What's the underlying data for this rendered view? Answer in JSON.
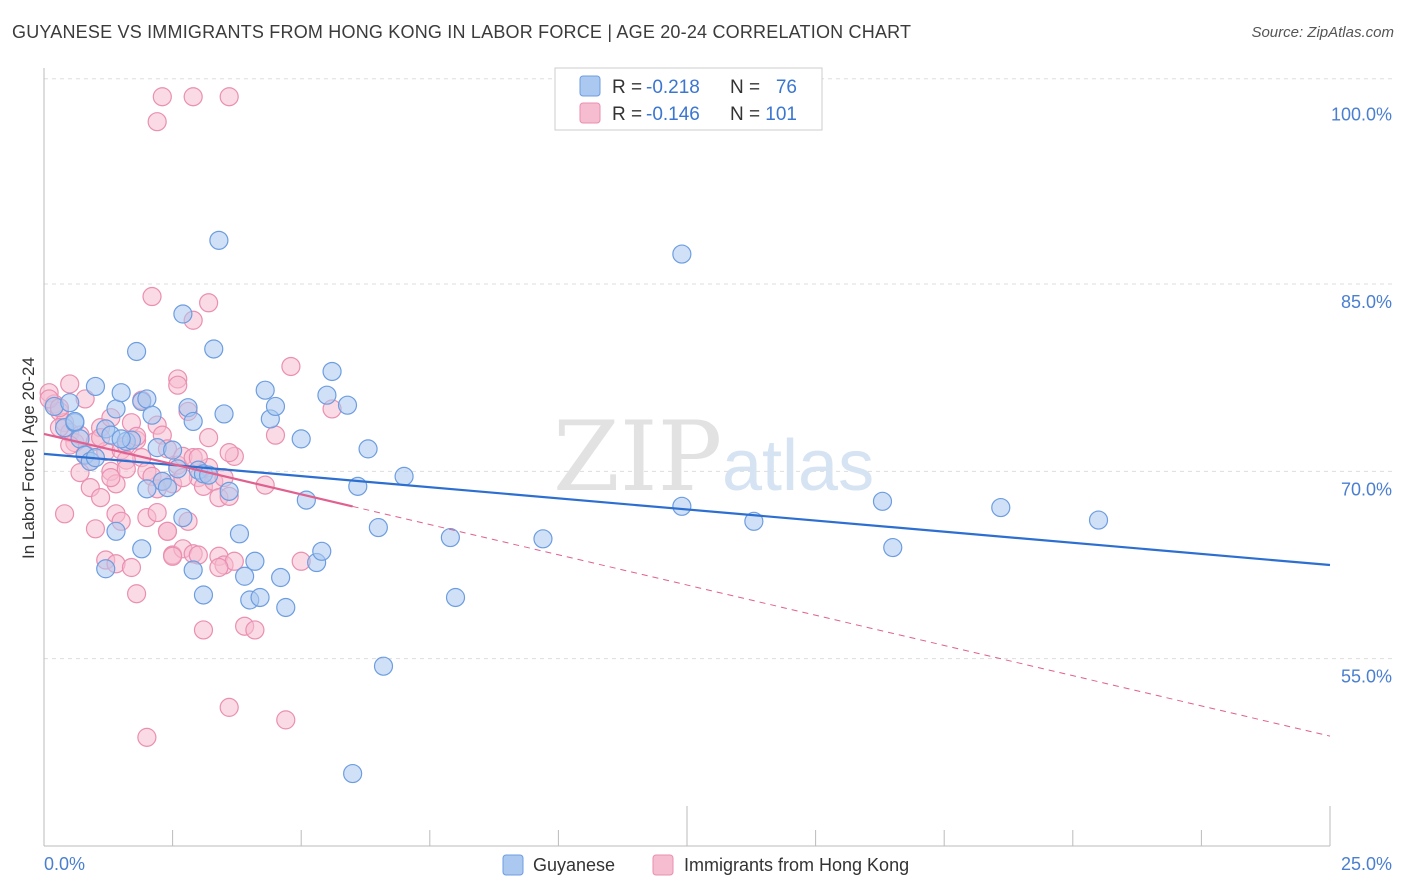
{
  "title": "GUYANESE VS IMMIGRANTS FROM HONG KONG IN LABOR FORCE | AGE 20-24 CORRELATION CHART",
  "source": "Source: ZipAtlas.com",
  "watermark": {
    "zip": "ZIP",
    "atlas": "atlas"
  },
  "colors": {
    "blue_fill": "#aac8f0",
    "blue_stroke": "#6d9de0",
    "blue_line": "#2d6fd0",
    "pink_fill": "#f6bcd0",
    "pink_stroke": "#ea8fb0",
    "pink_line": "#e0608f",
    "tick_text": "#4a7fd0",
    "grid": "#dddddd"
  },
  "legend": {
    "r_label": "R =",
    "n_label": "N =",
    "rows": [
      {
        "series": "Guyanese",
        "r": "-0.218",
        "n": "76"
      },
      {
        "series": "Immigrants from Hong Kong",
        "r": "-0.146",
        "n": "101"
      }
    ]
  },
  "chart_data": {
    "type": "scatter",
    "title": "GUYANESE VS IMMIGRANTS FROM HONG KONG IN LABOR FORCE | AGE 20-24 CORRELATION CHART",
    "ylabel": "In Labor Force | Age 20-24",
    "xlabel": "",
    "xlim": [
      0,
      25
    ],
    "ylim": [
      40,
      101.5
    ],
    "x_tick_labels": [
      "0.0%",
      "25.0%"
    ],
    "y_ticks": [
      55,
      70,
      85,
      100
    ],
    "y_tick_labels": [
      "55.0%",
      "70.0%",
      "85.0%",
      "100.0%"
    ],
    "grid": "horizontal dashed",
    "legend_position": "top-center",
    "series": [
      {
        "name": "Guyanese",
        "trend": {
          "x": [
            0,
            25
          ],
          "y": [
            71.4,
            62.5
          ],
          "solid_until": 25
        },
        "points": [
          [
            0.2,
            75.2
          ],
          [
            0.4,
            73.5
          ],
          [
            0.5,
            75.5
          ],
          [
            0.6,
            73.9
          ],
          [
            0.7,
            72.6
          ],
          [
            0.8,
            71.3
          ],
          [
            0.9,
            70.8
          ],
          [
            1.0,
            71.1
          ],
          [
            1.2,
            73.4
          ],
          [
            1.3,
            72.9
          ],
          [
            1.4,
            75.0
          ],
          [
            1.5,
            76.3
          ],
          [
            1.6,
            72.4
          ],
          [
            1.7,
            72.5
          ],
          [
            1.8,
            79.6
          ],
          [
            1.9,
            75.6
          ],
          [
            2.0,
            75.8
          ],
          [
            2.1,
            74.5
          ],
          [
            2.2,
            71.9
          ],
          [
            2.3,
            69.2
          ],
          [
            2.4,
            68.7
          ],
          [
            2.5,
            71.7
          ],
          [
            2.6,
            70.2
          ],
          [
            2.7,
            82.6
          ],
          [
            2.8,
            75.1
          ],
          [
            2.9,
            74.0
          ],
          [
            3.0,
            70.1
          ],
          [
            3.1,
            69.8
          ],
          [
            3.2,
            69.7
          ],
          [
            3.3,
            79.8
          ],
          [
            3.4,
            88.5
          ],
          [
            3.5,
            74.6
          ],
          [
            3.6,
            68.4
          ],
          [
            1.4,
            65.2
          ],
          [
            1.2,
            62.2
          ],
          [
            1.9,
            63.8
          ],
          [
            2.7,
            66.3
          ],
          [
            2.9,
            62.1
          ],
          [
            3.1,
            60.1
          ],
          [
            3.8,
            65.0
          ],
          [
            3.9,
            61.6
          ],
          [
            4.0,
            59.7
          ],
          [
            4.1,
            62.8
          ],
          [
            4.2,
            59.9
          ],
          [
            4.3,
            76.5
          ],
          [
            4.4,
            74.2
          ],
          [
            4.5,
            75.2
          ],
          [
            4.6,
            61.5
          ],
          [
            4.7,
            59.1
          ],
          [
            5.0,
            72.6
          ],
          [
            5.1,
            67.7
          ],
          [
            5.3,
            62.7
          ],
          [
            5.4,
            63.6
          ],
          [
            5.5,
            76.1
          ],
          [
            5.6,
            78.0
          ],
          [
            5.9,
            75.3
          ],
          [
            6.1,
            68.8
          ],
          [
            6.3,
            71.8
          ],
          [
            6.5,
            65.5
          ],
          [
            6.6,
            54.4
          ],
          [
            7.0,
            69.6
          ],
          [
            7.9,
            64.7
          ],
          [
            8.0,
            59.9
          ],
          [
            9.7,
            64.6
          ],
          [
            12.4,
            87.4
          ],
          [
            12.4,
            67.2
          ],
          [
            13.8,
            66.0
          ],
          [
            16.3,
            67.6
          ],
          [
            16.5,
            63.9
          ],
          [
            18.6,
            67.1
          ],
          [
            20.5,
            66.1
          ],
          [
            6.0,
            45.8
          ],
          [
            1.0,
            76.8
          ],
          [
            0.6,
            74.0
          ],
          [
            1.5,
            72.6
          ],
          [
            2.0,
            68.6
          ]
        ]
      },
      {
        "name": "Immigrants from Hong Kong",
        "trend": {
          "x": [
            0,
            25
          ],
          "y": [
            73.0,
            48.8
          ],
          "solid_until": 6.0
        },
        "points": [
          [
            0.1,
            76.3
          ],
          [
            0.2,
            75.4
          ],
          [
            0.3,
            74.8
          ],
          [
            0.4,
            73.9
          ],
          [
            0.5,
            73.1
          ],
          [
            0.6,
            72.3
          ],
          [
            0.7,
            72.9
          ],
          [
            0.8,
            71.4
          ],
          [
            0.9,
            70.8
          ],
          [
            1.0,
            72.4
          ],
          [
            1.1,
            73.5
          ],
          [
            1.2,
            71.6
          ],
          [
            1.3,
            70.0
          ],
          [
            1.4,
            69.0
          ],
          [
            1.5,
            71.7
          ],
          [
            1.6,
            72.1
          ],
          [
            1.7,
            73.9
          ],
          [
            1.8,
            72.5
          ],
          [
            1.9,
            71.1
          ],
          [
            2.0,
            70.0
          ],
          [
            2.1,
            69.6
          ],
          [
            2.2,
            73.7
          ],
          [
            2.3,
            72.9
          ],
          [
            2.4,
            71.8
          ],
          [
            2.5,
            69.0
          ],
          [
            2.6,
            70.5
          ],
          [
            2.7,
            71.2
          ],
          [
            2.8,
            74.8
          ],
          [
            2.9,
            71.1
          ],
          [
            3.0,
            69.5
          ],
          [
            3.1,
            68.8
          ],
          [
            3.2,
            70.3
          ],
          [
            3.3,
            69.2
          ],
          [
            3.4,
            67.9
          ],
          [
            3.5,
            69.5
          ],
          [
            3.6,
            68.0
          ],
          [
            3.7,
            71.2
          ],
          [
            0.3,
            73.5
          ],
          [
            0.5,
            72.1
          ],
          [
            0.7,
            69.9
          ],
          [
            0.9,
            68.7
          ],
          [
            1.1,
            67.9
          ],
          [
            1.3,
            69.5
          ],
          [
            1.4,
            66.6
          ],
          [
            1.6,
            70.9
          ],
          [
            1.8,
            72.8
          ],
          [
            2.0,
            66.3
          ],
          [
            2.2,
            66.7
          ],
          [
            2.4,
            65.2
          ],
          [
            2.5,
            63.3
          ],
          [
            2.7,
            63.8
          ],
          [
            2.9,
            63.4
          ],
          [
            3.0,
            71.1
          ],
          [
            3.2,
            72.7
          ],
          [
            3.4,
            63.2
          ],
          [
            3.5,
            62.5
          ],
          [
            3.7,
            62.8
          ],
          [
            3.9,
            57.6
          ],
          [
            4.1,
            57.3
          ],
          [
            4.3,
            68.9
          ],
          [
            4.5,
            72.9
          ],
          [
            4.8,
            78.4
          ],
          [
            5.0,
            62.8
          ],
          [
            5.6,
            75.0
          ],
          [
            0.4,
            66.6
          ],
          [
            0.5,
            77.0
          ],
          [
            1.0,
            65.4
          ],
          [
            1.2,
            62.9
          ],
          [
            1.4,
            62.6
          ],
          [
            1.5,
            66.0
          ],
          [
            1.7,
            62.3
          ],
          [
            1.8,
            60.2
          ],
          [
            2.1,
            84.0
          ],
          [
            2.2,
            68.6
          ],
          [
            2.3,
            69.2
          ],
          [
            2.4,
            65.2
          ],
          [
            2.5,
            63.2
          ],
          [
            2.6,
            77.4
          ],
          [
            2.7,
            69.5
          ],
          [
            2.8,
            66.0
          ],
          [
            2.9,
            82.1
          ],
          [
            3.0,
            63.3
          ],
          [
            3.1,
            57.3
          ],
          [
            3.2,
            83.5
          ],
          [
            3.4,
            62.3
          ],
          [
            3.6,
            51.1
          ],
          [
            3.6,
            71.5
          ],
          [
            2.0,
            48.7
          ],
          [
            4.7,
            50.1
          ],
          [
            2.3,
            100.0
          ],
          [
            2.9,
            100.0
          ],
          [
            3.6,
            100.0
          ],
          [
            2.2,
            98.0
          ],
          [
            0.1,
            75.8
          ],
          [
            0.3,
            75.1
          ],
          [
            0.8,
            75.8
          ],
          [
            1.1,
            72.7
          ],
          [
            1.3,
            74.3
          ],
          [
            1.9,
            75.7
          ],
          [
            2.6,
            76.9
          ],
          [
            1.6,
            70.2
          ]
        ]
      }
    ]
  }
}
